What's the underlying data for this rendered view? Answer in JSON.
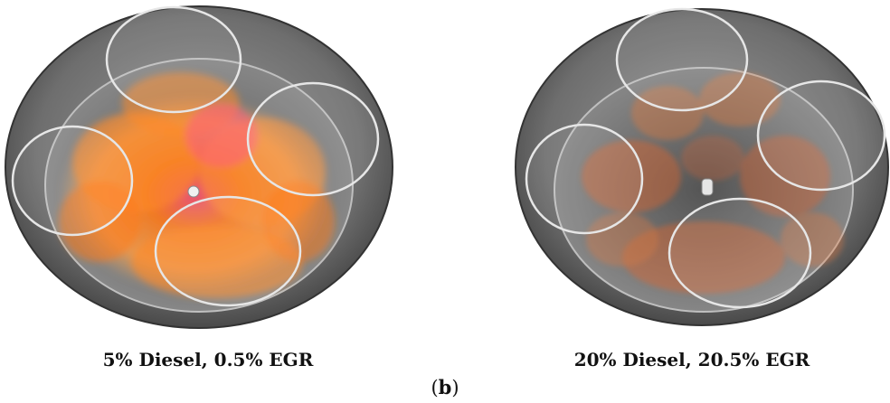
{
  "figure": {
    "panels": [
      {
        "caption": "5% Diesel, 0.5% EGR",
        "flame_intensity": "high",
        "flame_color": "#ff7a1a"
      },
      {
        "caption": "20% Diesel, 20.5% EGR",
        "flame_intensity": "low",
        "flame_color": "#e8642a"
      }
    ],
    "label_open": "(",
    "label_letter": "b",
    "label_close": ")"
  }
}
